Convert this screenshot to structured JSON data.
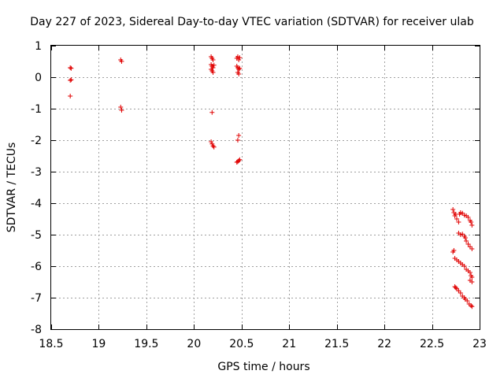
{
  "chart_data": {
    "type": "scatter",
    "title": "Day 227 of 2023, Sidereal Day-to-day VTEC variation (SDTVAR) for receiver ulab",
    "xlabel": "GPS time / hours",
    "ylabel": "SDTVAR / TECUs",
    "xlim": [
      18.5,
      23
    ],
    "ylim": [
      -8,
      1
    ],
    "xticks": [
      18.5,
      19,
      19.5,
      20,
      20.5,
      21,
      21.5,
      22,
      22.5,
      23
    ],
    "yticks": [
      -8,
      -7,
      -6,
      -5,
      -4,
      -3,
      -2,
      -1,
      0,
      1
    ],
    "xtick_labels": [
      "18.5",
      "19",
      "19.5",
      "20",
      "20.5",
      "21",
      "21.5",
      "22",
      "22.5",
      "23"
    ],
    "ytick_labels": [
      "-8",
      "-7",
      "-6",
      "-5",
      "-4",
      "-3",
      "-2",
      "-1",
      "0",
      "1"
    ],
    "grid": true,
    "marker": "+",
    "series": [
      {
        "name": "SDTVAR",
        "color": "#e00000",
        "points": [
          [
            18.7,
            0.3
          ],
          [
            18.71,
            0.28
          ],
          [
            18.7,
            -0.1
          ],
          [
            18.71,
            -0.08
          ],
          [
            18.7,
            -0.6
          ],
          [
            19.23,
            0.55
          ],
          [
            19.24,
            0.5
          ],
          [
            19.23,
            -0.95
          ],
          [
            19.24,
            -1.05
          ],
          [
            20.18,
            0.65
          ],
          [
            20.19,
            0.6
          ],
          [
            20.2,
            0.55
          ],
          [
            20.18,
            0.4
          ],
          [
            20.19,
            0.35
          ],
          [
            20.2,
            0.3
          ],
          [
            20.21,
            0.38
          ],
          [
            20.18,
            0.25
          ],
          [
            20.19,
            0.2
          ],
          [
            20.2,
            0.15
          ],
          [
            20.19,
            -1.12
          ],
          [
            20.18,
            -2.05
          ],
          [
            20.19,
            -2.12
          ],
          [
            20.2,
            -2.18
          ],
          [
            20.21,
            -2.22
          ],
          [
            20.45,
            0.6
          ],
          [
            20.46,
            0.65
          ],
          [
            20.47,
            0.55
          ],
          [
            20.48,
            0.62
          ],
          [
            20.45,
            0.35
          ],
          [
            20.46,
            0.3
          ],
          [
            20.47,
            0.25
          ],
          [
            20.48,
            0.28
          ],
          [
            20.46,
            0.15
          ],
          [
            20.47,
            0.1
          ],
          [
            20.47,
            -1.85
          ],
          [
            20.46,
            -2.0
          ],
          [
            20.45,
            -2.7
          ],
          [
            20.46,
            -2.68
          ],
          [
            20.47,
            -2.65
          ],
          [
            20.48,
            -2.62
          ],
          [
            22.72,
            -4.2
          ],
          [
            22.73,
            -4.3
          ],
          [
            22.74,
            -4.4
          ],
          [
            22.75,
            -4.35
          ],
          [
            22.76,
            -4.5
          ],
          [
            22.78,
            -4.6
          ],
          [
            22.79,
            -4.35
          ],
          [
            22.8,
            -4.3
          ],
          [
            22.82,
            -4.32
          ],
          [
            22.84,
            -4.38
          ],
          [
            22.86,
            -4.4
          ],
          [
            22.88,
            -4.45
          ],
          [
            22.9,
            -4.55
          ],
          [
            22.91,
            -4.6
          ],
          [
            22.92,
            -4.7
          ],
          [
            22.78,
            -4.95
          ],
          [
            22.8,
            -5.0
          ],
          [
            22.82,
            -4.98
          ],
          [
            22.84,
            -5.05
          ],
          [
            22.85,
            -5.1
          ],
          [
            22.86,
            -5.2
          ],
          [
            22.88,
            -5.3
          ],
          [
            22.9,
            -5.38
          ],
          [
            22.92,
            -5.45
          ],
          [
            22.72,
            -5.55
          ],
          [
            22.73,
            -5.5
          ],
          [
            22.74,
            -5.75
          ],
          [
            22.76,
            -5.8
          ],
          [
            22.78,
            -5.85
          ],
          [
            22.8,
            -5.9
          ],
          [
            22.82,
            -5.95
          ],
          [
            22.84,
            -6.0
          ],
          [
            22.86,
            -6.1
          ],
          [
            22.88,
            -6.15
          ],
          [
            22.9,
            -6.2
          ],
          [
            22.91,
            -6.3
          ],
          [
            22.92,
            -6.35
          ],
          [
            22.9,
            -6.45
          ],
          [
            22.92,
            -6.5
          ],
          [
            22.74,
            -6.65
          ],
          [
            22.75,
            -6.68
          ],
          [
            22.76,
            -6.72
          ],
          [
            22.78,
            -6.78
          ],
          [
            22.8,
            -6.85
          ],
          [
            22.82,
            -6.95
          ],
          [
            22.84,
            -7.0
          ],
          [
            22.85,
            -7.05
          ],
          [
            22.87,
            -7.1
          ],
          [
            22.89,
            -7.2
          ],
          [
            22.91,
            -7.25
          ],
          [
            22.92,
            -7.28
          ]
        ]
      }
    ]
  }
}
